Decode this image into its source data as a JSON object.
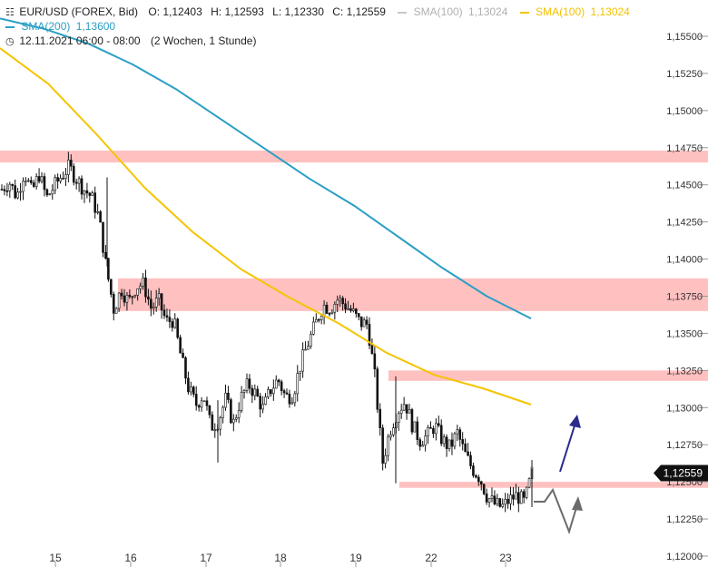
{
  "header": {
    "instrument": "EUR/USD (FOREX, Bid)",
    "ohlc": {
      "o": "O: 1,12403",
      "h": "H: 1,12593",
      "l": "L: 1,12330",
      "c": "C: 1,12559"
    },
    "sma100_gray": {
      "label": "SMA(100)",
      "value": "1,13024",
      "color": "#c8c8c8"
    },
    "sma100": {
      "label": "SMA(100)",
      "value": "1,13024",
      "color": "#f5c400"
    },
    "sma200": {
      "label": "SMA(200)",
      "value": "1,13600",
      "color": "#2a9fc4"
    },
    "time_range": "12.11.2021 06:00 - 08:00",
    "period": "(2 Wochen, 1 Stunde)"
  },
  "chart_data": {
    "type": "candlestick",
    "ylim": [
      1.12,
      1.158
    ],
    "y_ticks": [
      "1,15500",
      "1,15250",
      "1,15000",
      "1,14750",
      "1,14500",
      "1,14250",
      "1,14000",
      "1,13750",
      "1,13500",
      "1,13250",
      "1,13000",
      "1,12750",
      "1,12500",
      "1,12250",
      "1,12000"
    ],
    "y_tick_values": [
      1.155,
      1.1525,
      1.15,
      1.1475,
      1.145,
      1.1425,
      1.14,
      1.1375,
      1.135,
      1.1325,
      1.13,
      1.1275,
      1.125,
      1.1225,
      1.12
    ],
    "x_ticks": [
      "15",
      "16",
      "17",
      "18",
      "19",
      "22",
      "23"
    ],
    "last_price": "1,12559",
    "last_price_value": 1.12559,
    "resistance_zones": [
      {
        "from": 1.1465,
        "to": 1.1473
      },
      {
        "from": 1.1365,
        "to": 1.1387
      },
      {
        "from": 1.1318,
        "to": 1.1325
      },
      {
        "from": 1.1246,
        "to": 1.125
      }
    ],
    "series": [
      {
        "name": "SMA(200)",
        "color": "#2a9fc4",
        "y": [
          1.1562,
          1.1555,
          1.1545,
          1.1531,
          1.1514,
          1.1494,
          1.1474,
          1.1454,
          1.1436,
          1.1415,
          1.1394,
          1.1375,
          1.136
        ]
      },
      {
        "name": "SMA(100)",
        "color": "#f5c400",
        "y": [
          1.1542,
          1.1518,
          1.1484,
          1.1448,
          1.1418,
          1.1393,
          1.1374,
          1.1357,
          1.1337,
          1.1322,
          1.1313,
          1.1302
        ]
      }
    ],
    "price_path": [
      1.1447,
      1.1452,
      1.1442,
      1.1459,
      1.1445,
      1.1457,
      1.1441,
      1.1449,
      1.1456,
      1.1462,
      1.1454,
      1.1447,
      1.1442,
      1.1428,
      1.1394,
      1.1366,
      1.138,
      1.1371,
      1.1382,
      1.1383,
      1.1367,
      1.1372,
      1.1358,
      1.1359,
      1.1334,
      1.1313,
      1.1302,
      1.1309,
      1.1287,
      1.1291,
      1.1306,
      1.1289,
      1.1306,
      1.1316,
      1.1309,
      1.1299,
      1.1312,
      1.1319,
      1.1307,
      1.1309,
      1.1329,
      1.1343,
      1.1356,
      1.1369,
      1.1367,
      1.1373,
      1.1369,
      1.1364,
      1.1357,
      1.1356,
      1.1319,
      1.1263,
      1.1285,
      1.1298,
      1.1304,
      1.1288,
      1.1278,
      1.1281,
      1.1288,
      1.1278,
      1.1273,
      1.1283,
      1.1269,
      1.1259,
      1.1253,
      1.124,
      1.1235,
      1.1233,
      1.1238,
      1.1241,
      1.1236,
      1.1256
    ],
    "projection_arrows": [
      "up-blue",
      "down-up-gray"
    ]
  }
}
